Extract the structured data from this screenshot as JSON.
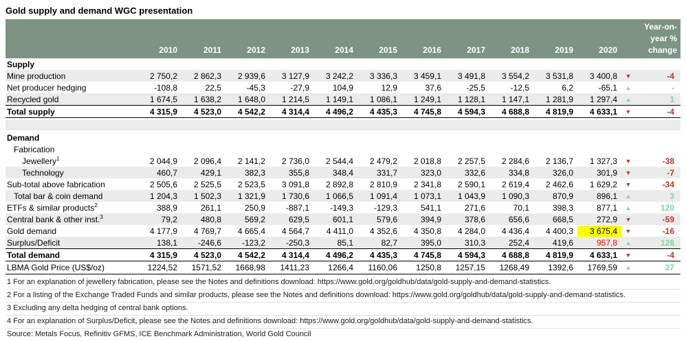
{
  "title": "Gold supply and demand WGC presentation",
  "colors": {
    "header_bg": "#7d9384",
    "stripe": "#ebebeb",
    "red": "#b03a2e",
    "bright_red": "#ff0000",
    "green": "#86d3a0",
    "highlight": "#ffff00",
    "header_text": "#ffffff"
  },
  "table": {
    "years": [
      "2010",
      "2011",
      "2012",
      "2013",
      "2014",
      "2015",
      "2016",
      "2017",
      "2018",
      "2019",
      "2020"
    ],
    "change_header": "Year-on-\nyear %\nchange",
    "rows": [
      {
        "id": "supply-header",
        "type": "section-header",
        "label": "Supply"
      },
      {
        "id": "mine-production",
        "label": "Mine production",
        "stripe": true,
        "values": [
          "2 750,2",
          "2 862,3",
          "2 939,6",
          "3 127,9",
          "3 242,2",
          "3 336,3",
          "3 459,1",
          "3 491,8",
          "3 554,2",
          "3 531,8",
          "3 400,8"
        ],
        "arrow": "down",
        "change": "-4",
        "change_dir": "down"
      },
      {
        "id": "net-producer-hedging",
        "label": "Net producer hedging",
        "values": [
          "-108,8",
          "22,5",
          "-45,3",
          "-27,9",
          "104,9",
          "12,9",
          "37,6",
          "-25,5",
          "-12,5",
          "6,2",
          "-65,1"
        ],
        "arrow": "up",
        "change": "-",
        "change_dir": "up"
      },
      {
        "id": "recycled-gold",
        "label": "Recycled gold",
        "stripe": true,
        "values": [
          "1 674,5",
          "1 638,2",
          "1 648,0",
          "1 214,5",
          "1 149,1",
          "1 086,1",
          "1 249,1",
          "1 128,1",
          "1 147,1",
          "1 281,9",
          "1 297,4"
        ],
        "arrow": "up",
        "change": "1",
        "change_dir": "up"
      },
      {
        "id": "total-supply",
        "type": "total",
        "label": "Total supply",
        "values": [
          "4 315,9",
          "4 523,0",
          "4 542,2",
          "4 314,4",
          "4 496,2",
          "4 435,3",
          "4 745,8",
          "4 594,3",
          "4 688,8",
          "4 819,9",
          "4 633,1"
        ],
        "arrow": "down",
        "change": "-4",
        "change_dir": "down"
      },
      {
        "id": "spacer",
        "type": "spacer"
      },
      {
        "id": "demand-header",
        "type": "section-header",
        "label": "Demand"
      },
      {
        "id": "fabrication",
        "label": "Fabrication",
        "indent": 1,
        "values": [
          "",
          "",
          "",
          "",
          "",
          "",
          "",
          "",
          "",
          "",
          ""
        ]
      },
      {
        "id": "jewellery",
        "label": "Jewellery",
        "sup": "1",
        "indent": 2,
        "values": [
          "2 044,9",
          "2 096,4",
          "2 141,2",
          "2 736,0",
          "2 544,4",
          "2 479,2",
          "2 018,8",
          "2 257,5",
          "2 284,6",
          "2 136,7",
          "1 327,3"
        ],
        "arrow": "down",
        "change": "-38",
        "change_dir": "down"
      },
      {
        "id": "technology",
        "label": "Technology",
        "indent": 2,
        "stripe": true,
        "values": [
          "460,7",
          "429,1",
          "382,3",
          "355,8",
          "348,4",
          "331,7",
          "323,0",
          "332,6",
          "334,8",
          "326,0",
          "301,9"
        ],
        "arrow": "down",
        "change": "-7",
        "change_dir": "down"
      },
      {
        "id": "subtotal-above-fabrication",
        "label": "Sub-total above fabrication",
        "values": [
          "2 505,6",
          "2 525,5",
          "2 523,5",
          "3 091,8",
          "2 892,8",
          "2 810,9",
          "2 341,8",
          "2 590,1",
          "2 619,4",
          "2 462,6",
          "1 629,2"
        ],
        "arrow": "down",
        "change": "-34",
        "change_dir": "down"
      },
      {
        "id": "total-bar-coin-demand",
        "label": "Total bar & coin demand",
        "indent": 1,
        "stripe": true,
        "values": [
          "1 204,3",
          "1 502,3",
          "1 321,9",
          "1 730,6",
          "1 066,5",
          "1 091,4",
          "1 073,1",
          "1 043,9",
          "1 090,3",
          "870,9",
          "896,1"
        ],
        "arrow": "up",
        "change": "3",
        "change_dir": "up"
      },
      {
        "id": "etfs-similar-products",
        "label": "ETFs & similar products",
        "sup": "2",
        "values": [
          "388,9",
          "261,1",
          "250,9",
          "-887,1",
          "-149,3",
          "-129,3",
          "541,1",
          "271,6",
          "70,1",
          "398,3",
          "877,1"
        ],
        "arrow": "up",
        "change": "120",
        "change_dir": "up"
      },
      {
        "id": "central-bank-other-inst",
        "label": "Central bank & other inst.",
        "sup": "3",
        "stripe": true,
        "values": [
          "79,2",
          "480,8",
          "569,2",
          "629,5",
          "601,1",
          "579,6",
          "394,9",
          "378,6",
          "656,6",
          "668,5",
          "272,9"
        ],
        "arrow": "down",
        "change": "-59",
        "change_dir": "down"
      },
      {
        "id": "gold-demand",
        "label": "Gold demand",
        "values": [
          "4 177,9",
          "4 769,7",
          "4 665,4",
          "4 564,7",
          "4 411,0",
          "4 352,6",
          "4 350,8",
          "4 284,0",
          "4 436,4",
          "4 400,3",
          "3 675,4"
        ],
        "arrow": "down",
        "change": "-16",
        "change_dir": "down",
        "highlight_col": 10
      },
      {
        "id": "surplus-deficit",
        "label": "Surplus/Deficit",
        "stripe": true,
        "values": [
          "138,1",
          "-246,6",
          "-123,2",
          "-250,3",
          "85,1",
          "82,7",
          "395,0",
          "310,3",
          "252,4",
          "419,6",
          "957,8"
        ],
        "arrow": "up",
        "change": "128",
        "change_dir": "up",
        "red_col": 10
      },
      {
        "id": "total-demand",
        "type": "total",
        "label": "Total demand",
        "values": [
          "4 315,9",
          "4 523,0",
          "4 542,2",
          "4 314,4",
          "4 496,2",
          "4 435,3",
          "4 745,8",
          "4 594,3",
          "4 688,8",
          "4 819,9",
          "4 633,1"
        ],
        "arrow": "down",
        "change": "-4",
        "change_dir": "down"
      },
      {
        "id": "lbma-gold-price",
        "type": "lbma",
        "label": "LBMA Gold Price (US$/oz)",
        "values": [
          "1224,52",
          "1571,52",
          "1668,98",
          "1411,23",
          "1266,4",
          "1160,06",
          "1250,8",
          "1257,15",
          "1268,49",
          "1392,6",
          "1769,59"
        ],
        "arrow": "up",
        "change": "27",
        "change_dir": "up"
      }
    ]
  },
  "footnotes": [
    "1 For an explanation of jewellery fabrication, please see the Notes and definitions download: https://www.gold.org/goldhub/data/gold-supply-and-demand-statistics.",
    "2 For a listing of the Exchange Traded Funds and similar products, please see the Notes and definitions download: https://www.gold.org/goldhub/data/gold-supply-and-demand-statistics.",
    "3 Excluding any delta hedging of central bank options.",
    "4 For an explanation of Surplus/Deficit, please see the Notes and definitions download: https://www.gold.org/goldhub/data/gold-supply-and-demand-statistics."
  ],
  "source": "Source: Metals Focus, Refinitiv GFMS, ICE Benchmark Administration, World Gold Council"
}
